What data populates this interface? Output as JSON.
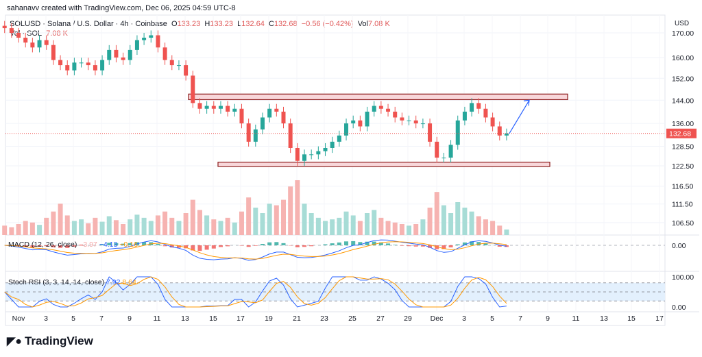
{
  "credit": "sahanavv created with TradingView.com, Dec 06, 2025 04:59 UTC-8",
  "legend": {
    "symbol": "SOLUSD · Solana / U.S. Dollar · 4h · Coinbase",
    "o_label": "O",
    "o": "133.23",
    "h_label": "H",
    "h": "133.23",
    "l_label": "L",
    "l": "132.64",
    "c_label": "C",
    "c": "132.68",
    "change": "−0.56 (−0.42%)",
    "vol_label": "Vol",
    "vol": "7.08 K",
    "vol_row_label": "Vol · SOL",
    "vol_row_value": "7.08 K"
  },
  "macd": {
    "label": "MACD (12, 26, close)",
    "hist": "−3.97",
    "macd": "−4.13",
    "signal": "−0.16"
  },
  "stoch": {
    "label": "Stoch RSI (3, 3, 14, 14, close)",
    "k": "7.92",
    "d": "8.64"
  },
  "axis": {
    "currency": "USD",
    "price_ticks": [
      "170.00",
      "160.00",
      "152.00",
      "144.00",
      "136.00",
      "128.50",
      "122.50",
      "116.50",
      "111.50",
      "106.50"
    ],
    "macd_tick": "0.00",
    "stoch_ticks": [
      "100.00",
      "0.00"
    ],
    "last_price": "132.68"
  },
  "logo": "TradingView",
  "colors": {
    "up": "#26a69a",
    "down": "#ef5350",
    "zone_fill": "#f8d7da",
    "zone_border": "#8b1a1a",
    "arrow": "#2962ff",
    "macd": "#2962ff",
    "signal": "#ff9800"
  },
  "chart_data": {
    "type": "candlestick",
    "scale": "log",
    "x_ticks": [
      "Nov",
      "3",
      "5",
      "7",
      "9",
      "11",
      "13",
      "15",
      "17",
      "19",
      "21",
      "23",
      "25",
      "27",
      "29",
      "Dec",
      "3",
      "5",
      "7",
      "9",
      "11",
      "13",
      "15",
      "17"
    ],
    "price_ticks": [
      170,
      160,
      152,
      144,
      136,
      128.5,
      122.5,
      116.5,
      111.5,
      106.5
    ],
    "closes": [
      172,
      170,
      168,
      166,
      164,
      167,
      165,
      159,
      157,
      155,
      158,
      158,
      157,
      155,
      159,
      163,
      160,
      159,
      163,
      167,
      168,
      169,
      164,
      159,
      157,
      157,
      153,
      143,
      141,
      142,
      141,
      142,
      140,
      141,
      136,
      130,
      134,
      138,
      141,
      140,
      136,
      128,
      124,
      126,
      126,
      127,
      128,
      130,
      132,
      136,
      137,
      135,
      140,
      142,
      141,
      140,
      138,
      137,
      137,
      136,
      136,
      130,
      125,
      125,
      129,
      137,
      140,
      143,
      141,
      138,
      135,
      132,
      132.68
    ],
    "volumes_k": [
      12,
      10,
      14,
      18,
      16,
      13,
      22,
      30,
      40,
      25,
      18,
      20,
      15,
      22,
      17,
      24,
      19,
      14,
      20,
      26,
      22,
      18,
      25,
      30,
      22,
      18,
      28,
      45,
      32,
      25,
      20,
      18,
      22,
      16,
      30,
      48,
      35,
      28,
      40,
      38,
      45,
      62,
      70,
      40,
      28,
      22,
      18,
      20,
      22,
      30,
      25,
      18,
      28,
      32,
      22,
      18,
      16,
      14,
      12,
      14,
      20,
      35,
      55,
      38,
      28,
      42,
      35,
      30,
      24,
      20,
      18,
      12,
      7.08
    ],
    "zones": [
      {
        "name": "resistance",
        "low": 144.2,
        "high": 146.2
      },
      {
        "name": "support",
        "low": 122.3,
        "high": 123.6
      }
    ],
    "projection": {
      "from": 132.68,
      "to": 144
    }
  }
}
